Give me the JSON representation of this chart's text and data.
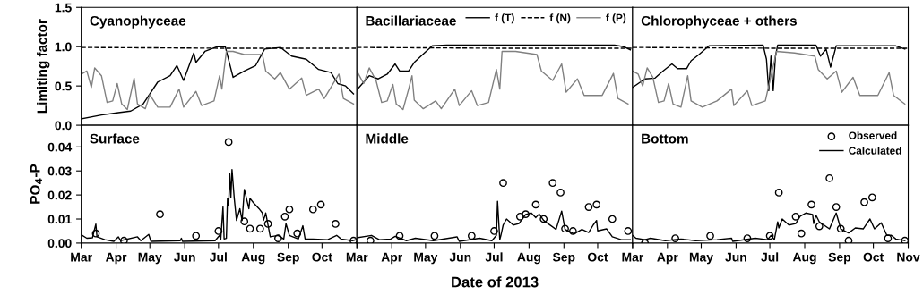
{
  "chart_data": [
    {
      "type": "line",
      "title": "Cyanophyceae",
      "ylabel": "Limiting factor",
      "xlim": [
        "2013-03-01",
        "2013-11-01"
      ],
      "ylim": [
        0,
        1.5
      ],
      "yticks": [
        {
          "value": 0,
          "label": "0.0"
        },
        {
          "value": 0.5,
          "label": "0.5"
        },
        {
          "value": 1.0,
          "label": "1.0"
        },
        {
          "value": 1.5,
          "label": "1.5"
        }
      ],
      "tick_labels": "y",
      "grid": false,
      "legend": false,
      "marker": "none",
      "series": [
        {
          "color": "#000000",
          "line_style": "solid",
          "x": [
            "2013-03-01",
            "2013-03-19",
            "2013-04-03",
            "2013-04-14",
            "2013-04-25",
            "2013-05-08",
            "2013-05-19",
            "2013-05-25",
            "2013-05-31",
            "2013-06-09",
            "2013-06-11",
            "2013-06-19",
            "2013-06-30",
            "2013-07-07",
            "2013-07-14",
            "2013-07-24",
            "2013-08-03",
            "2013-08-11",
            "2013-08-25",
            "2013-09-04",
            "2013-09-17",
            "2013-09-28",
            "2013-10-09",
            "2013-10-15",
            "2013-10-22",
            "2013-10-29"
          ],
          "values": [
            0.08,
            0.13,
            0.16,
            0.18,
            0.27,
            0.55,
            0.63,
            0.76,
            0.57,
            0.92,
            0.8,
            0.94,
            1.0,
            1.0,
            0.61,
            0.69,
            0.76,
            0.97,
            0.99,
            0.88,
            0.84,
            0.71,
            0.67,
            0.53,
            0.5,
            0.4
          ]
        },
        {
          "color": "#000000",
          "line_style": "dashed",
          "x": [
            "2013-03-01",
            "2013-07-01",
            "2013-10-31"
          ],
          "values": [
            0.99,
            0.98,
            0.98
          ]
        },
        {
          "color": "#808080",
          "line_style": "solid",
          "x": [
            "2013-03-01",
            "2013-03-06",
            "2013-03-10",
            "2013-03-13",
            "2013-03-19",
            "2013-03-24",
            "2013-03-29",
            "2013-04-02",
            "2013-04-06",
            "2013-04-11",
            "2013-04-17",
            "2013-04-20",
            "2013-04-27",
            "2013-05-01",
            "2013-05-08",
            "2013-05-19",
            "2013-05-27",
            "2013-05-31",
            "2013-06-11",
            "2013-06-16",
            "2013-06-27",
            "2013-07-02",
            "2013-07-04",
            "2013-07-06",
            "2013-07-08",
            "2013-07-14",
            "2013-07-24",
            "2013-08-09",
            "2013-08-12",
            "2013-08-20",
            "2013-08-25",
            "2013-09-02",
            "2013-09-13",
            "2013-09-17",
            "2013-09-28",
            "2013-10-03",
            "2013-10-16",
            "2013-10-20",
            "2013-10-29"
          ],
          "values": [
            0.65,
            0.69,
            0.48,
            0.73,
            0.63,
            0.29,
            0.31,
            0.53,
            0.27,
            0.2,
            0.6,
            0.27,
            0.21,
            0.39,
            0.23,
            0.23,
            0.46,
            0.23,
            0.43,
            0.25,
            0.31,
            0.63,
            0.46,
            0.71,
            0.94,
            0.94,
            0.9,
            0.9,
            0.69,
            0.59,
            0.67,
            0.46,
            0.6,
            0.38,
            0.46,
            0.34,
            0.65,
            0.34,
            0.27
          ]
        }
      ]
    },
    {
      "type": "line",
      "title": "Bacillariaceae",
      "xlim": [
        "2013-03-01",
        "2013-11-01"
      ],
      "ylim": [
        0,
        1.5
      ],
      "tick_labels": false,
      "grid": false,
      "legend": "top right",
      "marker": "none",
      "series": [
        {
          "name": "f (T)",
          "color": "#000000",
          "line_style": "solid",
          "x": [
            "2013-03-01",
            "2013-03-12",
            "2013-03-20",
            "2013-03-28",
            "2013-04-04",
            "2013-04-08",
            "2013-04-16",
            "2013-04-21",
            "2013-04-30",
            "2013-05-07",
            "2013-05-20",
            "2013-10-16",
            "2013-10-24",
            "2013-10-30"
          ],
          "values": [
            0.45,
            0.63,
            0.59,
            0.65,
            0.78,
            0.69,
            0.69,
            0.8,
            0.92,
            1.01,
            1.02,
            1.02,
            1.0,
            0.96
          ]
        },
        {
          "name": "f (N)",
          "color": "#000000",
          "line_style": "dashed",
          "x": [
            "2013-03-01",
            "2013-07-01",
            "2013-10-31"
          ],
          "values": [
            0.99,
            0.98,
            0.98
          ]
        },
        {
          "name": "f (P)",
          "color": "#808080",
          "line_style": "solid",
          "x": [
            "2013-03-01",
            "2013-03-07",
            "2013-03-12",
            "2013-03-18",
            "2013-03-23",
            "2013-03-28",
            "2013-04-02",
            "2013-04-05",
            "2013-04-11",
            "2013-04-16",
            "2013-04-19",
            "2013-04-21",
            "2013-04-29",
            "2013-05-10",
            "2013-05-15",
            "2013-05-27",
            "2013-05-31",
            "2013-06-11",
            "2013-06-16",
            "2013-06-26",
            "2013-07-03",
            "2013-07-06",
            "2013-07-08",
            "2013-07-20",
            "2013-08-08",
            "2013-08-12",
            "2013-08-22",
            "2013-08-30",
            "2013-09-03",
            "2013-09-13",
            "2013-09-19",
            "2013-10-05",
            "2013-10-15",
            "2013-10-19",
            "2013-10-28"
          ],
          "values": [
            0.69,
            0.53,
            0.73,
            0.57,
            0.29,
            0.31,
            0.52,
            0.27,
            0.2,
            0.46,
            0.63,
            0.32,
            0.21,
            0.31,
            0.21,
            0.46,
            0.25,
            0.44,
            0.25,
            0.29,
            0.71,
            0.46,
            0.94,
            0.94,
            0.9,
            0.69,
            0.57,
            0.78,
            0.42,
            0.59,
            0.38,
            0.38,
            0.66,
            0.34,
            0.27
          ]
        }
      ]
    },
    {
      "type": "line",
      "title": "Chlorophyceae + others",
      "xlim": [
        "2013-03-01",
        "2013-11-01"
      ],
      "ylim": [
        0,
        1.5
      ],
      "tick_labels": false,
      "grid": false,
      "legend": false,
      "marker": "none",
      "series": [
        {
          "color": "#000000",
          "line_style": "solid",
          "x": [
            "2013-03-01",
            "2013-03-12",
            "2013-03-21",
            "2013-03-28",
            "2013-04-05",
            "2013-04-10",
            "2013-04-18",
            "2013-04-22",
            "2013-04-29",
            "2013-05-08",
            "2013-06-25",
            "2013-06-28",
            "2013-06-30",
            "2013-07-02",
            "2013-07-04",
            "2013-07-06",
            "2013-07-08",
            "2013-08-11",
            "2013-08-15",
            "2013-08-20",
            "2013-08-24",
            "2013-08-29",
            "2013-10-21",
            "2013-10-29"
          ],
          "values": [
            0.48,
            0.59,
            0.6,
            0.69,
            0.78,
            0.72,
            0.72,
            0.82,
            0.9,
            1.01,
            1.02,
            0.84,
            0.44,
            0.88,
            0.44,
            0.88,
            1.02,
            1.02,
            0.88,
            0.97,
            0.74,
            1.01,
            1.01,
            0.97
          ]
        },
        {
          "color": "#000000",
          "line_style": "dashed",
          "x": [
            "2013-03-01",
            "2013-07-01",
            "2013-10-31"
          ],
          "values": [
            0.99,
            0.98,
            0.98
          ]
        },
        {
          "color": "#808080",
          "line_style": "solid",
          "x": [
            "2013-03-01",
            "2013-03-06",
            "2013-03-10",
            "2013-03-14",
            "2013-03-19",
            "2013-03-24",
            "2013-03-29",
            "2013-04-02",
            "2013-04-06",
            "2013-04-13",
            "2013-04-19",
            "2013-04-22",
            "2013-05-02",
            "2013-05-15",
            "2013-05-28",
            "2013-05-30",
            "2013-06-11",
            "2013-06-15",
            "2013-06-27",
            "2013-07-07",
            "2013-07-23",
            "2013-08-10",
            "2013-08-13",
            "2013-08-21",
            "2013-08-29",
            "2013-09-03",
            "2013-09-13",
            "2013-09-19",
            "2013-10-05",
            "2013-10-15",
            "2013-10-19",
            "2013-10-29"
          ],
          "values": [
            0.69,
            0.65,
            0.5,
            0.73,
            0.61,
            0.29,
            0.31,
            0.53,
            0.27,
            0.23,
            0.63,
            0.31,
            0.23,
            0.31,
            0.46,
            0.25,
            0.44,
            0.25,
            0.31,
            0.94,
            0.92,
            0.88,
            0.71,
            0.59,
            0.69,
            0.42,
            0.61,
            0.38,
            0.38,
            0.67,
            0.38,
            0.27
          ]
        }
      ]
    },
    {
      "type": "line",
      "title": "Surface",
      "ylabel": "PO$_{4}$-P",
      "xlim": [
        "2013-03-01",
        "2013-11-01"
      ],
      "ylim": [
        0,
        0.049
      ],
      "yticks": [
        {
          "value": 0,
          "label": "0.00"
        },
        {
          "value": 0.01,
          "label": "0.01"
        },
        {
          "value": 0.02,
          "label": "0.02"
        },
        {
          "value": 0.03,
          "label": "0.03"
        },
        {
          "value": 0.04,
          "label": "0.04"
        }
      ],
      "xticks": [
        {
          "value": "2013-03-01",
          "label": "Mar"
        },
        {
          "value": "2013-04-01",
          "label": "Apr"
        },
        {
          "value": "2013-05-01",
          "label": "May"
        },
        {
          "value": "2013-06-01",
          "label": "Jun"
        },
        {
          "value": "2013-07-01",
          "label": "Jul"
        },
        {
          "value": "2013-08-01",
          "label": "Aug"
        },
        {
          "value": "2013-09-01",
          "label": "Sep"
        },
        {
          "value": "2013-10-01",
          "label": "Oct"
        },
        {
          "value": "2013-11-01",
          "label": null
        }
      ],
      "grid": false,
      "legend": false,
      "series": [
        {
          "type": "scatter",
          "marker": "circle",
          "color": "#000000",
          "x": [
            "2013-03-14",
            "2013-04-08",
            "2013-05-10",
            "2013-06-11",
            "2013-07-01",
            "2013-07-10",
            "2013-07-24",
            "2013-07-29",
            "2013-08-07",
            "2013-08-14",
            "2013-08-23",
            "2013-08-29",
            "2013-09-02",
            "2013-09-09",
            "2013-09-23",
            "2013-09-30",
            "2013-10-13",
            "2013-10-29"
          ],
          "values": [
            0.004,
            0.001,
            0.012,
            0.003,
            0.005,
            0.042,
            0.009,
            0.006,
            0.006,
            0.008,
            0.002,
            0.011,
            0.014,
            0.004,
            0.014,
            0.016,
            0.008,
            0.001
          ]
        },
        {
          "type": "line",
          "marker": "none",
          "color": "#000000",
          "line_style": "solid",
          "x": [
            "2013-03-01",
            "2013-03-06",
            "2013-03-11",
            "2013-03-14",
            "2013-03-15",
            "2013-03-22",
            "2013-03-30",
            "2013-04-03",
            "2013-04-05",
            "2013-04-20",
            "2013-04-23",
            "2013-04-30",
            "2013-05-02",
            "2013-05-28",
            "2013-05-29",
            "2013-05-30",
            "2013-06-28",
            "2013-07-02",
            "2013-07-03",
            "2013-07-05",
            "2013-07-06",
            "2013-07-08",
            "2013-07-09",
            "2013-07-10",
            "2013-07-11",
            "2013-07-12",
            "2013-07-13",
            "2013-07-15",
            "2013-07-17",
            "2013-07-20",
            "2013-07-22",
            "2013-07-24",
            "2013-07-28",
            "2013-07-29",
            "2013-08-01",
            "2013-08-06",
            "2013-08-09",
            "2013-08-10",
            "2013-08-12",
            "2013-08-16",
            "2013-08-23",
            "2013-08-28",
            "2013-08-30",
            "2013-09-02",
            "2013-09-10",
            "2013-09-14",
            "2013-09-16",
            "2013-09-23",
            "2013-10-06",
            "2013-10-14",
            "2013-10-18",
            "2013-10-28",
            "2013-10-31"
          ],
          "values": [
            0.0035,
            0.002,
            0.0022,
            0.0079,
            0.0026,
            0.0014,
            0.0007,
            0.0026,
            0.001,
            0.0026,
            0.001,
            0.0036,
            0.0007,
            0.001,
            0.002,
            0.0007,
            0.001,
            0.0032,
            0.0014,
            0.015,
            0.0017,
            0.002,
            0.0186,
            0.0156,
            0.029,
            0.019,
            0.0306,
            0.0186,
            0.0094,
            0.0143,
            0.0094,
            0.0223,
            0.0143,
            0.0186,
            0.0168,
            0.0143,
            0.0125,
            0.0094,
            0.0125,
            0.0026,
            0.0032,
            0.0017,
            0.0081,
            0.0032,
            0.0017,
            0.0072,
            0.0017,
            0.0017,
            0.0014,
            0.0032,
            0.0017,
            0.001,
            0.0014
          ]
        }
      ]
    },
    {
      "type": "line",
      "title": "Middle",
      "xlabel": "Date of 2013",
      "xlim": [
        "2013-03-01",
        "2013-11-01"
      ],
      "ylim": [
        0,
        0.049
      ],
      "tick_labels": "x",
      "xticks": [
        {
          "value": "2013-03-01",
          "label": "Mar"
        },
        {
          "value": "2013-04-01",
          "label": "Apr"
        },
        {
          "value": "2013-05-01",
          "label": "May"
        },
        {
          "value": "2013-06-01",
          "label": "Jun"
        },
        {
          "value": "2013-07-01",
          "label": "Jul"
        },
        {
          "value": "2013-08-01",
          "label": "Aug"
        },
        {
          "value": "2013-09-01",
          "label": "Sep"
        },
        {
          "value": "2013-10-01",
          "label": "Oct"
        },
        {
          "value": "2013-11-01",
          "label": null
        }
      ],
      "grid": false,
      "legend": false,
      "series": [
        {
          "type": "scatter",
          "marker": "circle",
          "color": "#000000",
          "x": [
            "2013-03-13",
            "2013-04-08",
            "2013-05-09",
            "2013-06-11",
            "2013-07-01",
            "2013-07-09",
            "2013-07-24",
            "2013-07-29",
            "2013-08-07",
            "2013-08-14",
            "2013-08-22",
            "2013-08-29",
            "2013-09-02",
            "2013-09-09",
            "2013-09-23",
            "2013-09-30",
            "2013-10-14",
            "2013-10-28"
          ],
          "values": [
            0.001,
            0.003,
            0.003,
            0.003,
            0.005,
            0.025,
            0.011,
            0.012,
            0.016,
            0.01,
            0.025,
            0.021,
            0.006,
            0.005,
            0.015,
            0.016,
            0.01,
            0.005
          ]
        },
        {
          "type": "line",
          "marker": "none",
          "color": "#000000",
          "line_style": "solid",
          "x": [
            "2013-03-01",
            "2013-03-14",
            "2013-03-21",
            "2013-03-31",
            "2013-04-04",
            "2013-04-14",
            "2013-04-22",
            "2013-05-08",
            "2013-05-29",
            "2013-05-31",
            "2013-06-18",
            "2013-06-29",
            "2013-07-03",
            "2013-07-04",
            "2013-07-06",
            "2013-07-07",
            "2013-07-09",
            "2013-07-12",
            "2013-07-18",
            "2013-07-23",
            "2013-07-29",
            "2013-08-03",
            "2013-08-07",
            "2013-08-10",
            "2013-08-14",
            "2013-08-25",
            "2013-08-30",
            "2013-09-02",
            "2013-09-10",
            "2013-09-17",
            "2013-09-23",
            "2013-09-27",
            "2013-09-30",
            "2013-10-01",
            "2013-10-09",
            "2013-10-14",
            "2013-10-22",
            "2013-10-30"
          ],
          "values": [
            0.0022,
            0.0032,
            0.0014,
            0.0017,
            0.0028,
            0.001,
            0.002,
            0.001,
            0.0026,
            0.0007,
            0.002,
            0.001,
            0.0032,
            0.0174,
            0.0014,
            0.0032,
            0.0075,
            0.01,
            0.0075,
            0.0081,
            0.0119,
            0.0125,
            0.0106,
            0.0121,
            0.0094,
            0.0057,
            0.0133,
            0.0057,
            0.0038,
            0.0057,
            0.0044,
            0.0075,
            0.0094,
            0.0051,
            0.0059,
            0.0026,
            0.0014,
            0.0014
          ]
        }
      ]
    },
    {
      "type": "line",
      "title": "Bottom",
      "xlim": [
        "2013-03-01",
        "2013-11-01"
      ],
      "ylim": [
        0,
        0.049
      ],
      "tick_labels": "x",
      "xticks": [
        {
          "value": "2013-03-01",
          "label": "Mar"
        },
        {
          "value": "2013-04-01",
          "label": "Apr"
        },
        {
          "value": "2013-05-01",
          "label": "May"
        },
        {
          "value": "2013-06-01",
          "label": "Jun"
        },
        {
          "value": "2013-07-01",
          "label": "Jul"
        },
        {
          "value": "2013-08-01",
          "label": "Aug"
        },
        {
          "value": "2013-09-01",
          "label": "Sep"
        },
        {
          "value": "2013-10-01",
          "label": "Oct"
        },
        {
          "value": "2013-11-01",
          "label": "Nov"
        }
      ],
      "grid": false,
      "legend": "top right",
      "series": [
        {
          "name": "Observed",
          "type": "scatter",
          "marker": "circle",
          "color": "#000000",
          "x": [
            "2013-03-12",
            "2013-04-08",
            "2013-05-09",
            "2013-06-11",
            "2013-07-01",
            "2013-07-09",
            "2013-07-24",
            "2013-07-29",
            "2013-08-07",
            "2013-08-14",
            "2013-08-23",
            "2013-08-29",
            "2013-09-02",
            "2013-09-09",
            "2013-09-23",
            "2013-09-30",
            "2013-10-14",
            "2013-10-29"
          ],
          "values": [
            0.0,
            0.002,
            0.003,
            0.002,
            0.003,
            0.021,
            0.011,
            0.004,
            0.016,
            0.007,
            0.027,
            0.015,
            0.006,
            0.001,
            0.017,
            0.019,
            0.002,
            0.001
          ]
        },
        {
          "name": "Calculated",
          "type": "line",
          "marker": "none",
          "color": "#000000",
          "line_style": "solid",
          "x": [
            "2013-03-01",
            "2013-03-04",
            "2013-03-12",
            "2013-03-17",
            "2013-03-30",
            "2013-04-13",
            "2013-04-26",
            "2013-05-15",
            "2013-05-28",
            "2013-05-29",
            "2013-06-18",
            "2013-06-29",
            "2013-07-02",
            "2013-07-05",
            "2013-07-08",
            "2013-07-09",
            "2013-07-12",
            "2013-07-18",
            "2013-07-24",
            "2013-07-28",
            "2013-08-02",
            "2013-08-08",
            "2013-08-09",
            "2013-08-11",
            "2013-08-14",
            "2013-08-23",
            "2013-08-29",
            "2013-09-02",
            "2013-09-09",
            "2013-09-15",
            "2013-09-22",
            "2013-09-28",
            "2013-10-02",
            "2013-10-08",
            "2013-10-13",
            "2013-10-17",
            "2013-10-21",
            "2013-10-29"
          ],
          "values": [
            0.0032,
            0.002,
            0.0014,
            0.002,
            0.001,
            0.0017,
            0.001,
            0.0014,
            0.002,
            0.0007,
            0.002,
            0.0014,
            0.0032,
            0.0014,
            0.0088,
            0.0063,
            0.01,
            0.0075,
            0.0081,
            0.0112,
            0.0125,
            0.0119,
            0.0081,
            0.0116,
            0.0088,
            0.0059,
            0.0125,
            0.0059,
            0.0042,
            0.0063,
            0.0059,
            0.01,
            0.0059,
            0.0084,
            0.0032,
            0.0032,
            0.0017,
            0.001
          ]
        }
      ]
    }
  ]
}
